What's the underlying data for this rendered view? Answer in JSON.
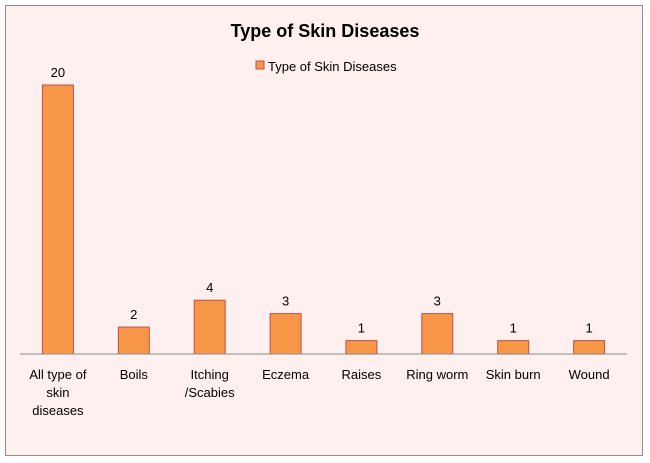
{
  "chart_data": {
    "type": "bar",
    "title": "Type of Skin Diseases",
    "legend": {
      "position": "top",
      "entries": [
        "Type of Skin Diseases"
      ]
    },
    "categories": [
      [
        "All type of",
        "skin",
        "diseases"
      ],
      [
        "Boils"
      ],
      [
        "Itching",
        "/Scabies"
      ],
      [
        "Eczema"
      ],
      [
        "Raises"
      ],
      [
        "Ring worm"
      ],
      [
        "Skin burn"
      ],
      [
        "Wound"
      ]
    ],
    "series": [
      {
        "name": "Type of Skin Diseases",
        "values": [
          20,
          2,
          4,
          3,
          1,
          3,
          1,
          1
        ]
      }
    ],
    "data_labels": [
      "20",
      "2",
      "4",
      "3",
      "1",
      "3",
      "1",
      "1"
    ],
    "ylim": [
      0,
      20
    ],
    "grid": false,
    "colors": {
      "bar": "#f79646",
      "bar_edge": "#c0504d",
      "background": "#fdf0ee",
      "axis": "#8c8c8c"
    }
  }
}
